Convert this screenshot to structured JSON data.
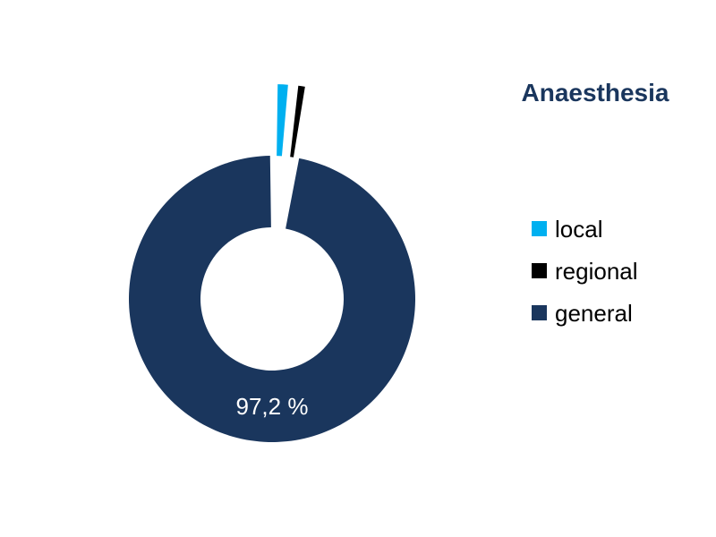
{
  "chart_data": {
    "type": "pie",
    "variant": "doughnut",
    "title": "Anaesthesia",
    "categories": [
      "local",
      "regional",
      "general"
    ],
    "values": [
      1.6,
      1.2,
      97.2
    ],
    "colors": [
      "#00b0f0",
      "#000000",
      "#1a365d"
    ],
    "exploded": [
      "local",
      "regional"
    ],
    "data_labels": [
      {
        "category": "general",
        "text": "97,2 %"
      }
    ],
    "legend_placement": "right"
  }
}
